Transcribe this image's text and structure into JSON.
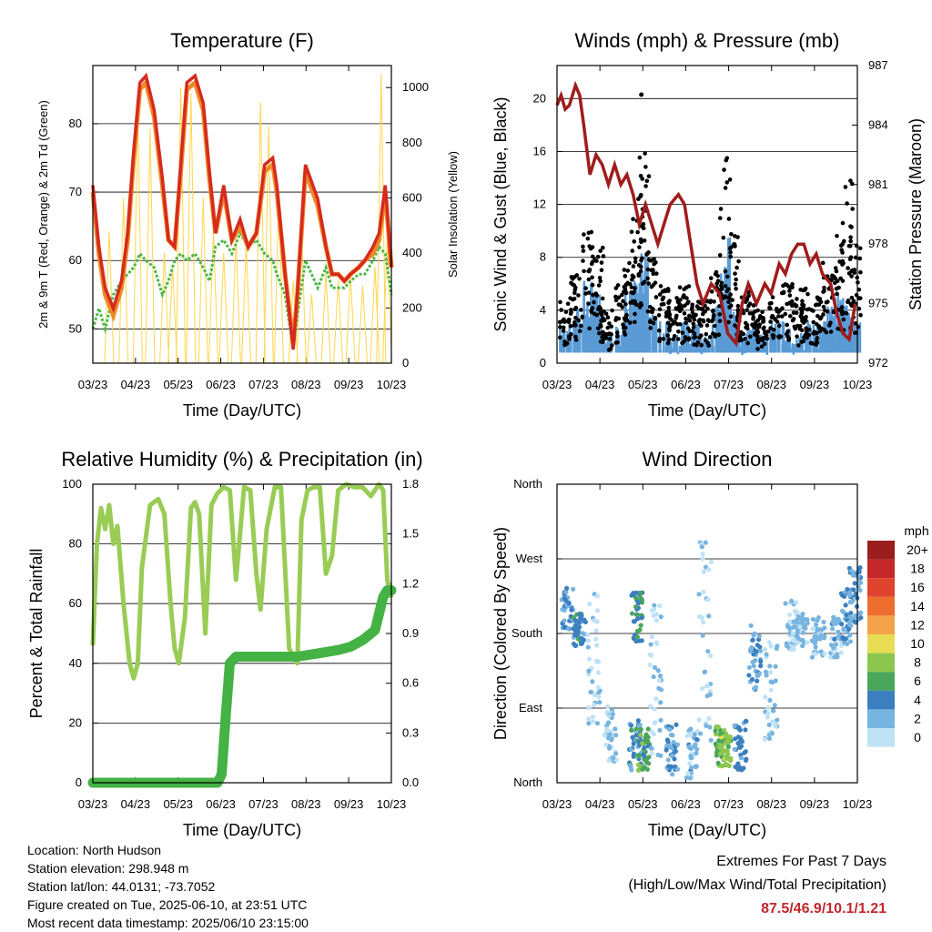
{
  "colors": {
    "temp_2m": "#d62a20",
    "temp_9m": "#f08a24",
    "dewpoint": "#4cb848",
    "solar": "#ffd64a",
    "gust": "#000000",
    "wind": "#5a9bd5",
    "pressure": "#a01c1c",
    "rh": "#99cc55",
    "precip": "#44b244",
    "extremes": "#c0282d"
  },
  "chart_data": [
    {
      "id": "temperature",
      "type": "line",
      "title": "Temperature (F)",
      "xlabel": "Time (Day/UTC)",
      "ylabel": "2m & 9m T (Red, Orange) & 2m Td (Green)",
      "ylabel_right": "Solar Insolation (Yellow)",
      "x_ticks": [
        "03/23",
        "04/23",
        "05/23",
        "06/23",
        "07/23",
        "08/23",
        "09/23",
        "10/23"
      ],
      "ylim": [
        45,
        88.5
      ],
      "y_ticks": [
        50,
        60,
        70,
        80
      ],
      "ylim_right": [
        0,
        1080
      ],
      "y_ticks_right": [
        0,
        200,
        400,
        600,
        800,
        1000
      ],
      "grid": true,
      "x": [
        0,
        0.15,
        0.3,
        0.5,
        0.7,
        0.85,
        1,
        1.15,
        1.3,
        1.5,
        1.7,
        1.85,
        2,
        2.15,
        2.3,
        2.5,
        2.7,
        2.85,
        3,
        3.2,
        3.4,
        3.6,
        3.8,
        4,
        4.2,
        4.4,
        4.5,
        4.7,
        4.9,
        5,
        5.2,
        5.5,
        5.7,
        5.85,
        6,
        6.15,
        6.3,
        6.5,
        6.65,
        6.85,
        7,
        7.15,
        7.3
      ],
      "series": [
        {
          "name": "2m T",
          "values": [
            71,
            62,
            56,
            53,
            57,
            64,
            76,
            86,
            87,
            82,
            72,
            63,
            62,
            74,
            86,
            87,
            83,
            73,
            64,
            71,
            63,
            66,
            62,
            64,
            74,
            75,
            71,
            58,
            47,
            55,
            74,
            69,
            62,
            58,
            58,
            57,
            58,
            59,
            60,
            62,
            64,
            71,
            59
          ]
        },
        {
          "name": "9m T",
          "values": [
            70,
            61,
            55,
            52,
            56,
            63,
            75,
            85,
            86,
            81,
            71,
            63,
            62,
            73,
            85,
            86,
            82,
            72,
            64,
            70,
            63,
            65,
            62,
            64,
            73,
            74,
            70,
            58,
            48,
            55,
            73,
            68,
            62,
            58,
            58,
            57,
            58,
            59,
            60,
            61,
            63,
            70,
            59
          ]
        },
        {
          "name": "2m Td",
          "values": [
            50,
            53,
            50,
            55,
            57,
            58,
            59,
            61,
            60,
            59,
            55,
            57,
            60,
            61,
            60,
            61,
            59,
            57,
            62,
            63,
            61,
            64,
            62,
            63,
            61,
            60,
            58,
            55,
            47,
            52,
            60,
            56,
            59,
            56,
            56,
            56,
            57,
            58,
            58,
            60,
            62,
            61,
            55
          ]
        }
      ],
      "solar_peaks": [
        {
          "x": 0.4,
          "value": 480
        },
        {
          "x": 0.75,
          "value": 600
        },
        {
          "x": 1.1,
          "value": 920
        },
        {
          "x": 1.4,
          "value": 850
        },
        {
          "x": 1.75,
          "value": 400
        },
        {
          "x": 1.95,
          "value": 350
        },
        {
          "x": 2.15,
          "value": 1000
        },
        {
          "x": 2.4,
          "value": 980
        },
        {
          "x": 2.7,
          "value": 600
        },
        {
          "x": 2.95,
          "value": 480
        },
        {
          "x": 3.2,
          "value": 400
        },
        {
          "x": 3.5,
          "value": 460
        },
        {
          "x": 3.75,
          "value": 430
        },
        {
          "x": 4.1,
          "value": 950
        },
        {
          "x": 4.3,
          "value": 860
        },
        {
          "x": 4.55,
          "value": 620
        },
        {
          "x": 4.9,
          "value": 300
        },
        {
          "x": 5.1,
          "value": 500
        },
        {
          "x": 5.35,
          "value": 250
        },
        {
          "x": 5.7,
          "value": 330
        },
        {
          "x": 6.0,
          "value": 300
        },
        {
          "x": 6.3,
          "value": 320
        },
        {
          "x": 6.6,
          "value": 280
        },
        {
          "x": 6.9,
          "value": 350
        },
        {
          "x": 7.05,
          "value": 1050
        },
        {
          "x": 7.2,
          "value": 450
        }
      ]
    },
    {
      "id": "winds",
      "type": "line",
      "title": "Winds (mph) & Pressure (mb)",
      "xlabel": "Time (Day/UTC)",
      "ylabel": "Sonic Wind & Gust (Blue, Black)",
      "ylabel_right": "Station Pressure (Maroon)",
      "x_ticks": [
        "03/23",
        "04/23",
        "05/23",
        "06/23",
        "07/23",
        "08/23",
        "09/23",
        "10/23"
      ],
      "ylim": [
        0,
        22.5
      ],
      "y_ticks": [
        0,
        4,
        8,
        12,
        16,
        20
      ],
      "ylim_right": [
        972,
        987
      ],
      "y_ticks_right": [
        972,
        975,
        978,
        981,
        984,
        987
      ],
      "grid": true,
      "pressure": {
        "x": [
          0,
          0.1,
          0.2,
          0.3,
          0.45,
          0.55,
          0.65,
          0.8,
          0.95,
          1.1,
          1.25,
          1.4,
          1.55,
          1.7,
          1.85,
          2.0,
          2.15,
          2.3,
          2.45,
          2.6,
          2.75,
          2.95,
          3.1,
          3.25,
          3.4,
          3.55,
          3.75,
          3.95,
          4.15,
          4.35,
          4.5,
          4.65,
          4.85,
          5.05,
          5.2,
          5.4,
          5.55,
          5.7,
          5.85,
          6.0,
          6.15,
          6.3,
          6.45,
          6.65,
          6.8,
          6.95,
          7.1,
          7.25
        ],
        "values": [
          985,
          985.5,
          984.8,
          985,
          986,
          985.5,
          984,
          981.5,
          982.5,
          982,
          981,
          982,
          981,
          981.5,
          980.5,
          979,
          980,
          979,
          978,
          979,
          980,
          980.5,
          980,
          978,
          976,
          975,
          976,
          975.5,
          973.5,
          973,
          975,
          976,
          975,
          976,
          975.5,
          977,
          976.5,
          977.5,
          978,
          978,
          977,
          977.5,
          976.5,
          976,
          974.5,
          973.5,
          973.2,
          975
        ]
      },
      "wind_bursts": [
        {
          "x": 0.2,
          "wind": 3,
          "gust": 5
        },
        {
          "x": 0.45,
          "wind": 4,
          "gust": 7
        },
        {
          "x": 0.75,
          "wind": 6,
          "gust": 10
        },
        {
          "x": 1.0,
          "wind": 5,
          "gust": 9
        },
        {
          "x": 1.2,
          "wind": 2,
          "gust": 4
        },
        {
          "x": 1.55,
          "wind": 3,
          "gust": 6
        },
        {
          "x": 1.75,
          "wind": 5,
          "gust": 8
        },
        {
          "x": 1.95,
          "wind": 6,
          "gust": 12
        },
        {
          "x": 2.1,
          "wind": 8,
          "gust": 16
        },
        {
          "x": 2.3,
          "wind": 4,
          "gust": 8
        },
        {
          "x": 2.6,
          "wind": 3,
          "gust": 6
        },
        {
          "x": 2.85,
          "wind": 2,
          "gust": 5
        },
        {
          "x": 3.1,
          "wind": 3,
          "gust": 6
        },
        {
          "x": 3.35,
          "wind": 3,
          "gust": 5
        },
        {
          "x": 3.6,
          "wind": 2,
          "gust": 5
        },
        {
          "x": 3.85,
          "wind": 4,
          "gust": 7
        },
        {
          "x": 4.1,
          "wind": 9,
          "gust": 16
        },
        {
          "x": 4.3,
          "wind": 4,
          "gust": 10
        },
        {
          "x": 4.5,
          "wind": 2,
          "gust": 5
        },
        {
          "x": 4.75,
          "wind": 3,
          "gust": 6
        },
        {
          "x": 5.0,
          "wind": 2,
          "gust": 4
        },
        {
          "x": 5.3,
          "wind": 3,
          "gust": 5
        },
        {
          "x": 5.6,
          "wind": 3,
          "gust": 6
        },
        {
          "x": 5.85,
          "wind": 2,
          "gust": 5
        },
        {
          "x": 6.05,
          "wind": 3,
          "gust": 6
        },
        {
          "x": 6.35,
          "wind": 3,
          "gust": 5
        },
        {
          "x": 6.6,
          "wind": 4,
          "gust": 8
        },
        {
          "x": 6.85,
          "wind": 5,
          "gust": 10
        },
        {
          "x": 7.05,
          "wind": 4,
          "gust": 14
        },
        {
          "x": 7.25,
          "wind": 3,
          "gust": 9
        }
      ],
      "max_gust": {
        "x": 2.05,
        "value": 20.3
      }
    },
    {
      "id": "humidity",
      "type": "line",
      "title": "Relative Humidity (%) & Precipitation (in)",
      "xlabel": "Time (Day/UTC)",
      "ylabel": "Percent & Total Rainfall",
      "x_ticks": [
        "03/23",
        "04/23",
        "05/23",
        "06/23",
        "07/23",
        "08/23",
        "09/23",
        "10/23"
      ],
      "ylim": [
        0,
        100
      ],
      "y_ticks": [
        0,
        20,
        40,
        60,
        80,
        100
      ],
      "ylim_right": [
        0,
        1.8
      ],
      "y_ticks_right": [
        "0.0",
        "0.3",
        "0.6",
        "0.9",
        "1.2",
        "1.5",
        "1.8"
      ],
      "grid": true,
      "rh": {
        "x": [
          0,
          0.1,
          0.2,
          0.3,
          0.4,
          0.5,
          0.6,
          0.75,
          0.9,
          1.0,
          1.1,
          1.2,
          1.4,
          1.6,
          1.75,
          1.9,
          2.0,
          2.1,
          2.25,
          2.4,
          2.5,
          2.6,
          2.75,
          2.9,
          3.05,
          3.2,
          3.35,
          3.5,
          3.7,
          3.85,
          4.0,
          4.1,
          4.25,
          4.45,
          4.6,
          4.8,
          5.0,
          5.1,
          5.25,
          5.4,
          5.55,
          5.7,
          5.85,
          6.0,
          6.2,
          6.4,
          6.6,
          6.8,
          7.0,
          7.1,
          7.2,
          7.3
        ],
        "values": [
          46,
          80,
          92,
          85,
          93,
          80,
          86,
          60,
          40,
          35,
          40,
          72,
          93,
          95,
          90,
          60,
          45,
          40,
          55,
          92,
          94,
          90,
          50,
          93,
          97,
          99,
          98,
          68,
          99,
          98,
          70,
          58,
          85,
          99,
          99,
          45,
          40,
          88,
          98,
          99,
          99,
          70,
          76,
          98,
          100,
          99,
          99,
          96,
          100,
          98,
          68,
          62
        ]
      },
      "precip": {
        "x": [
          0,
          1,
          2,
          3.05,
          3.15,
          3.25,
          3.35,
          3.5,
          4,
          5,
          5.5,
          6,
          6.3,
          6.6,
          6.9,
          7.0,
          7.1,
          7.2,
          7.3
        ],
        "values": [
          0,
          0,
          0,
          0,
          0.05,
          0.4,
          0.72,
          0.76,
          0.76,
          0.76,
          0.78,
          0.8,
          0.82,
          0.86,
          0.92,
          1.02,
          1.12,
          1.16,
          1.16
        ]
      }
    },
    {
      "id": "wind_direction",
      "type": "scatter",
      "title": "Wind Direction",
      "xlabel": "Time (Day/UTC)",
      "ylabel": "Direction (Colored By Speed)",
      "x_ticks": [
        "03/23",
        "04/23",
        "05/23",
        "06/23",
        "07/23",
        "08/23",
        "09/23",
        "10/23"
      ],
      "y_ticks": [
        "North",
        "East",
        "South",
        "West",
        "North"
      ],
      "ylim": [
        0,
        360
      ],
      "grid": true,
      "colorbar": {
        "title": "mph",
        "labels": [
          "20+",
          "18",
          "16",
          "14",
          "12",
          "10",
          "8",
          "6",
          "4",
          "2",
          "0"
        ],
        "colors": [
          "#9b1d1d",
          "#c6272b",
          "#e0432d",
          "#ee6e2f",
          "#f4a24a",
          "#e8dc55",
          "#8cc64f",
          "#4aa65a",
          "#3c7fc0",
          "#78b4e0",
          "#bfe2f5"
        ]
      },
      "clusters": [
        {
          "x": 0.25,
          "dir": 210,
          "spread": 25,
          "speed": 3
        },
        {
          "x": 0.55,
          "dir": 185,
          "spread": 20,
          "speed": 4
        },
        {
          "x": 0.9,
          "dir": 150,
          "spread": 90,
          "speed": 1
        },
        {
          "x": 1.3,
          "dir": 60,
          "spread": 35,
          "speed": 1
        },
        {
          "x": 1.9,
          "dir": 45,
          "spread": 30,
          "speed": 4
        },
        {
          "x": 1.95,
          "dir": 200,
          "spread": 30,
          "speed": 5
        },
        {
          "x": 2.1,
          "dir": 40,
          "spread": 25,
          "speed": 6
        },
        {
          "x": 2.4,
          "dir": 120,
          "spread": 100,
          "speed": 1
        },
        {
          "x": 2.8,
          "dir": 40,
          "spread": 30,
          "speed": 3
        },
        {
          "x": 3.3,
          "dir": 35,
          "spread": 30,
          "speed": 2
        },
        {
          "x": 3.6,
          "dir": 170,
          "spread": 120,
          "speed": 1
        },
        {
          "x": 4.0,
          "dir": 45,
          "spread": 25,
          "speed": 7
        },
        {
          "x": 4.1,
          "dir": 40,
          "spread": 20,
          "speed": 8
        },
        {
          "x": 4.45,
          "dir": 45,
          "spread": 30,
          "speed": 4
        },
        {
          "x": 4.8,
          "dir": 150,
          "spread": 40,
          "speed": 3
        },
        {
          "x": 5.2,
          "dir": 110,
          "spread": 60,
          "speed": 1
        },
        {
          "x": 5.7,
          "dir": 190,
          "spread": 30,
          "speed": 1
        },
        {
          "x": 5.95,
          "dir": 185,
          "spread": 20,
          "speed": 2
        },
        {
          "x": 6.35,
          "dir": 175,
          "spread": 25,
          "speed": 2
        },
        {
          "x": 6.8,
          "dir": 175,
          "spread": 25,
          "speed": 2
        },
        {
          "x": 7.05,
          "dir": 200,
          "spread": 35,
          "speed": 3
        },
        {
          "x": 7.25,
          "dir": 220,
          "spread": 40,
          "speed": 3
        }
      ]
    }
  ],
  "station": {
    "location": "Location: North Hudson",
    "elevation": "Station elevation: 298.948 m",
    "latlon": "Station lat/lon: 44.0131; -73.7052",
    "created": "Figure created on Tue, 2025-06-10, at 23:51 UTC",
    "latest": "Most recent data timestamp: 2025/06/10 23:15:00"
  },
  "extremes": {
    "title": "Extremes For Past 7 Days",
    "subtitle": "(High/Low/Max Wind/Total Precipitation)",
    "values": "87.5/46.9/10.1/1.21"
  }
}
